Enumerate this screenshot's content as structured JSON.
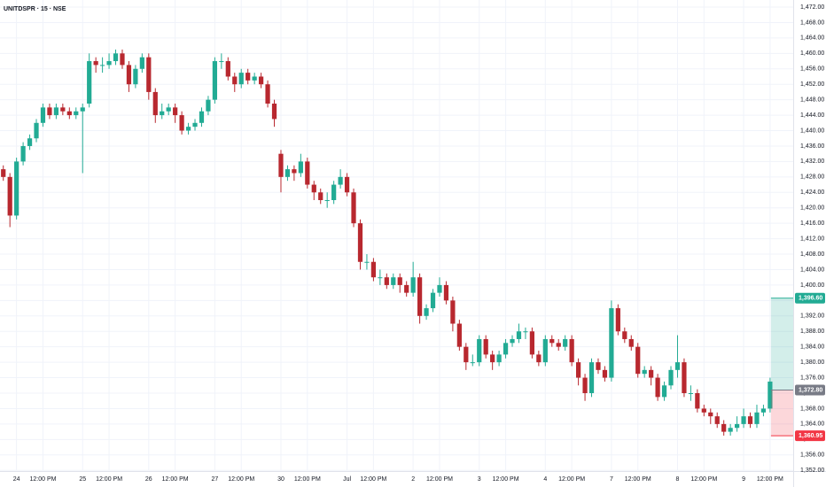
{
  "chart_data": {
    "type": "candlestick",
    "title": "UNITDSPR · 15 · NSE",
    "up_color": "#22ab94",
    "down_color": "#b8282f",
    "grid": true,
    "categories": [
      null,
      null,
      "24",
      null,
      null,
      null,
      "12:00 PM",
      null,
      null,
      null,
      null,
      null,
      "25",
      null,
      null,
      null,
      "12:00 PM",
      null,
      null,
      null,
      null,
      null,
      "26",
      null,
      null,
      null,
      "12:00 PM",
      null,
      null,
      null,
      null,
      null,
      "27",
      null,
      null,
      null,
      "12:00 PM",
      null,
      null,
      null,
      null,
      null,
      "30",
      null,
      null,
      null,
      "12:00 PM",
      null,
      null,
      null,
      null,
      null,
      "Jul",
      null,
      null,
      null,
      "12:00 PM",
      null,
      null,
      null,
      null,
      null,
      "2",
      null,
      null,
      null,
      "12:00 PM",
      null,
      null,
      null,
      null,
      null,
      "3",
      null,
      null,
      null,
      "12:00 PM",
      null,
      null,
      null,
      null,
      null,
      "4",
      null,
      null,
      null,
      "12:00 PM",
      null,
      null,
      null,
      null,
      null,
      "7",
      null,
      null,
      null,
      "12:00 PM",
      null,
      null,
      null,
      null,
      null,
      "8",
      null,
      null,
      null,
      "12:00 PM",
      null,
      null,
      null,
      null,
      null,
      "9",
      null,
      null,
      null,
      "12:00 PM"
    ],
    "open": [
      1430,
      1428,
      1418,
      1432,
      1436,
      1438,
      1442,
      1446,
      1444,
      1446,
      1445,
      1444,
      1445,
      1447,
      1458,
      1457,
      1457,
      1458,
      1460,
      1457,
      1452,
      1456,
      1459,
      1450,
      1444,
      1445,
      1446,
      1444,
      1440,
      1441,
      1442,
      1445,
      1448,
      1458,
      1458,
      1454,
      1452,
      1455,
      1453,
      1454,
      1452,
      1447,
      1434,
      1428,
      1430,
      1429,
      1432,
      1426,
      1424,
      1422,
      1422,
      1426,
      1428,
      1424,
      1416,
      1406,
      1406,
      1402,
      1402,
      1400,
      1402,
      1400,
      1398,
      1402,
      1392,
      1394,
      1398,
      1400,
      1396,
      1390,
      1384,
      1380,
      1380,
      1386,
      1382,
      1380,
      1382,
      1385,
      1386,
      1388,
      1388,
      1382,
      1380,
      1386,
      1385,
      1384,
      1386,
      1380,
      1376,
      1372,
      1380,
      1378,
      1376,
      1394,
      1388,
      1386,
      1384,
      1377,
      1378,
      1376,
      1371,
      1374,
      1378,
      1380,
      1372,
      1372,
      1368,
      1367,
      1366,
      1364,
      1362,
      1363,
      1364,
      1366,
      1364,
      1367,
      1368
    ],
    "high": [
      1431,
      1429,
      1433,
      1437,
      1439,
      1443,
      1447,
      1447,
      1447,
      1447,
      1446,
      1446,
      1447,
      1460,
      1459,
      1459,
      1460,
      1461,
      1461,
      1458,
      1457,
      1460,
      1460,
      1451,
      1447,
      1447,
      1447,
      1445,
      1442,
      1443,
      1446,
      1449,
      1459,
      1460,
      1459,
      1455,
      1456,
      1456,
      1455,
      1455,
      1453,
      1448,
      1435,
      1431,
      1431,
      1434,
      1433,
      1427,
      1425,
      1424,
      1427,
      1430,
      1429,
      1425,
      1417,
      1408,
      1407,
      1404,
      1403,
      1403,
      1403,
      1401,
      1406,
      1403,
      1395,
      1399,
      1402,
      1401,
      1397,
      1391,
      1385,
      1382,
      1387,
      1387,
      1383,
      1383,
      1386,
      1387,
      1390,
      1389,
      1389,
      1383,
      1387,
      1387,
      1386,
      1387,
      1387,
      1381,
      1377,
      1381,
      1381,
      1379,
      1396,
      1395,
      1389,
      1387,
      1385,
      1379,
      1379,
      1377,
      1375,
      1379,
      1387,
      1381,
      1374,
      1373,
      1369,
      1368,
      1367,
      1365,
      1364,
      1366,
      1368,
      1367,
      1369,
      1369,
      1376
    ],
    "low": [
      1427,
      1415,
      1417,
      1431,
      1435,
      1437,
      1441,
      1443,
      1443,
      1444,
      1443,
      1443,
      1429,
      1446,
      1455,
      1455,
      1456,
      1457,
      1456,
      1450,
      1451,
      1455,
      1448,
      1442,
      1443,
      1444,
      1442,
      1439,
      1439,
      1440,
      1441,
      1444,
      1447,
      1456,
      1453,
      1450,
      1451,
      1452,
      1452,
      1451,
      1446,
      1441,
      1424,
      1427,
      1427,
      1428,
      1425,
      1422,
      1421,
      1420,
      1421,
      1425,
      1423,
      1415,
      1404,
      1404,
      1401,
      1400,
      1399,
      1399,
      1398,
      1397,
      1397,
      1390,
      1391,
      1393,
      1397,
      1395,
      1388,
      1383,
      1378,
      1379,
      1379,
      1381,
      1378,
      1379,
      1381,
      1384,
      1385,
      1386,
      1381,
      1379,
      1379,
      1384,
      1383,
      1383,
      1379,
      1374,
      1370,
      1371,
      1377,
      1375,
      1375,
      1387,
      1385,
      1383,
      1376,
      1376,
      1374,
      1370,
      1370,
      1373,
      1376,
      1371,
      1370,
      1367,
      1366,
      1364,
      1363,
      1361,
      1361,
      1362,
      1363,
      1363,
      1363,
      1366,
      1367
    ],
    "close": [
      1428,
      1418,
      1432,
      1436,
      1438,
      1442,
      1446,
      1444,
      1446,
      1445,
      1444,
      1445,
      1446,
      1458,
      1457,
      1457,
      1458,
      1460,
      1457,
      1452,
      1456,
      1459,
      1450,
      1444,
      1445,
      1446,
      1444,
      1440,
      1441,
      1442,
      1445,
      1448,
      1458,
      1458,
      1454,
      1452,
      1455,
      1453,
      1454,
      1452,
      1447,
      1443,
      1428,
      1430,
      1429,
      1432,
      1426,
      1424,
      1422,
      1422,
      1426,
      1428,
      1424,
      1416,
      1406,
      1406,
      1402,
      1402,
      1400,
      1402,
      1400,
      1398,
      1402,
      1392,
      1394,
      1398,
      1400,
      1396,
      1390,
      1384,
      1380,
      1380,
      1386,
      1382,
      1380,
      1382,
      1385,
      1386,
      1388,
      1388,
      1382,
      1380,
      1386,
      1385,
      1384,
      1386,
      1380,
      1376,
      1372,
      1380,
      1378,
      1376,
      1394,
      1388,
      1386,
      1384,
      1377,
      1378,
      1376,
      1371,
      1374,
      1378,
      1380,
      1372,
      1372,
      1368,
      1367,
      1366,
      1364,
      1362,
      1363,
      1364,
      1366,
      1364,
      1367,
      1368,
      1375
    ],
    "ylim": [
      1352,
      1472
    ],
    "yticks": [
      {
        "value": 1472,
        "label": "1,472.00"
      },
      {
        "value": 1468,
        "label": "1,468.00"
      },
      {
        "value": 1464,
        "label": "1,464.00"
      },
      {
        "value": 1460,
        "label": "1,460.00"
      },
      {
        "value": 1456,
        "label": "1,456.00"
      },
      {
        "value": 1452,
        "label": "1,452.00"
      },
      {
        "value": 1448,
        "label": "1,448.00"
      },
      {
        "value": 1444,
        "label": "1,444.00"
      },
      {
        "value": 1440,
        "label": "1,440.00"
      },
      {
        "value": 1436,
        "label": "1,436.00"
      },
      {
        "value": 1432,
        "label": "1,432.00"
      },
      {
        "value": 1428,
        "label": "1,428.00"
      },
      {
        "value": 1424,
        "label": "1,424.00"
      },
      {
        "value": 1420,
        "label": "1,420.00"
      },
      {
        "value": 1416,
        "label": "1,416.00"
      },
      {
        "value": 1412,
        "label": "1,412.00"
      },
      {
        "value": 1408,
        "label": "1,408.00"
      },
      {
        "value": 1404,
        "label": "1,404.00"
      },
      {
        "value": 1400,
        "label": "1,400.00"
      },
      {
        "value": 1396,
        "label": "1,396.00"
      },
      {
        "value": 1392,
        "label": "1,392.00"
      },
      {
        "value": 1388,
        "label": "1,388.00"
      },
      {
        "value": 1384,
        "label": "1,384.00"
      },
      {
        "value": 1380,
        "label": "1,380.00"
      },
      {
        "value": 1376,
        "label": "1,376.00"
      },
      {
        "value": 1372,
        "label": "1,372.00"
      },
      {
        "value": 1368,
        "label": "1,368.00"
      },
      {
        "value": 1364,
        "label": "1,364.00"
      },
      {
        "value": 1360,
        "label": "1,360.00"
      },
      {
        "value": 1356,
        "label": "1,356.00"
      },
      {
        "value": 1352,
        "label": "1,352.00"
      }
    ],
    "price_labels": [
      {
        "value": 1396.6,
        "label": "1,396.60",
        "color": "#22ab94"
      },
      {
        "value": 1372.8,
        "label": "1,372.80",
        "color": "#787b86"
      },
      {
        "value": 1360.95,
        "label": "1,360.95",
        "color": "#f23645"
      }
    ]
  }
}
